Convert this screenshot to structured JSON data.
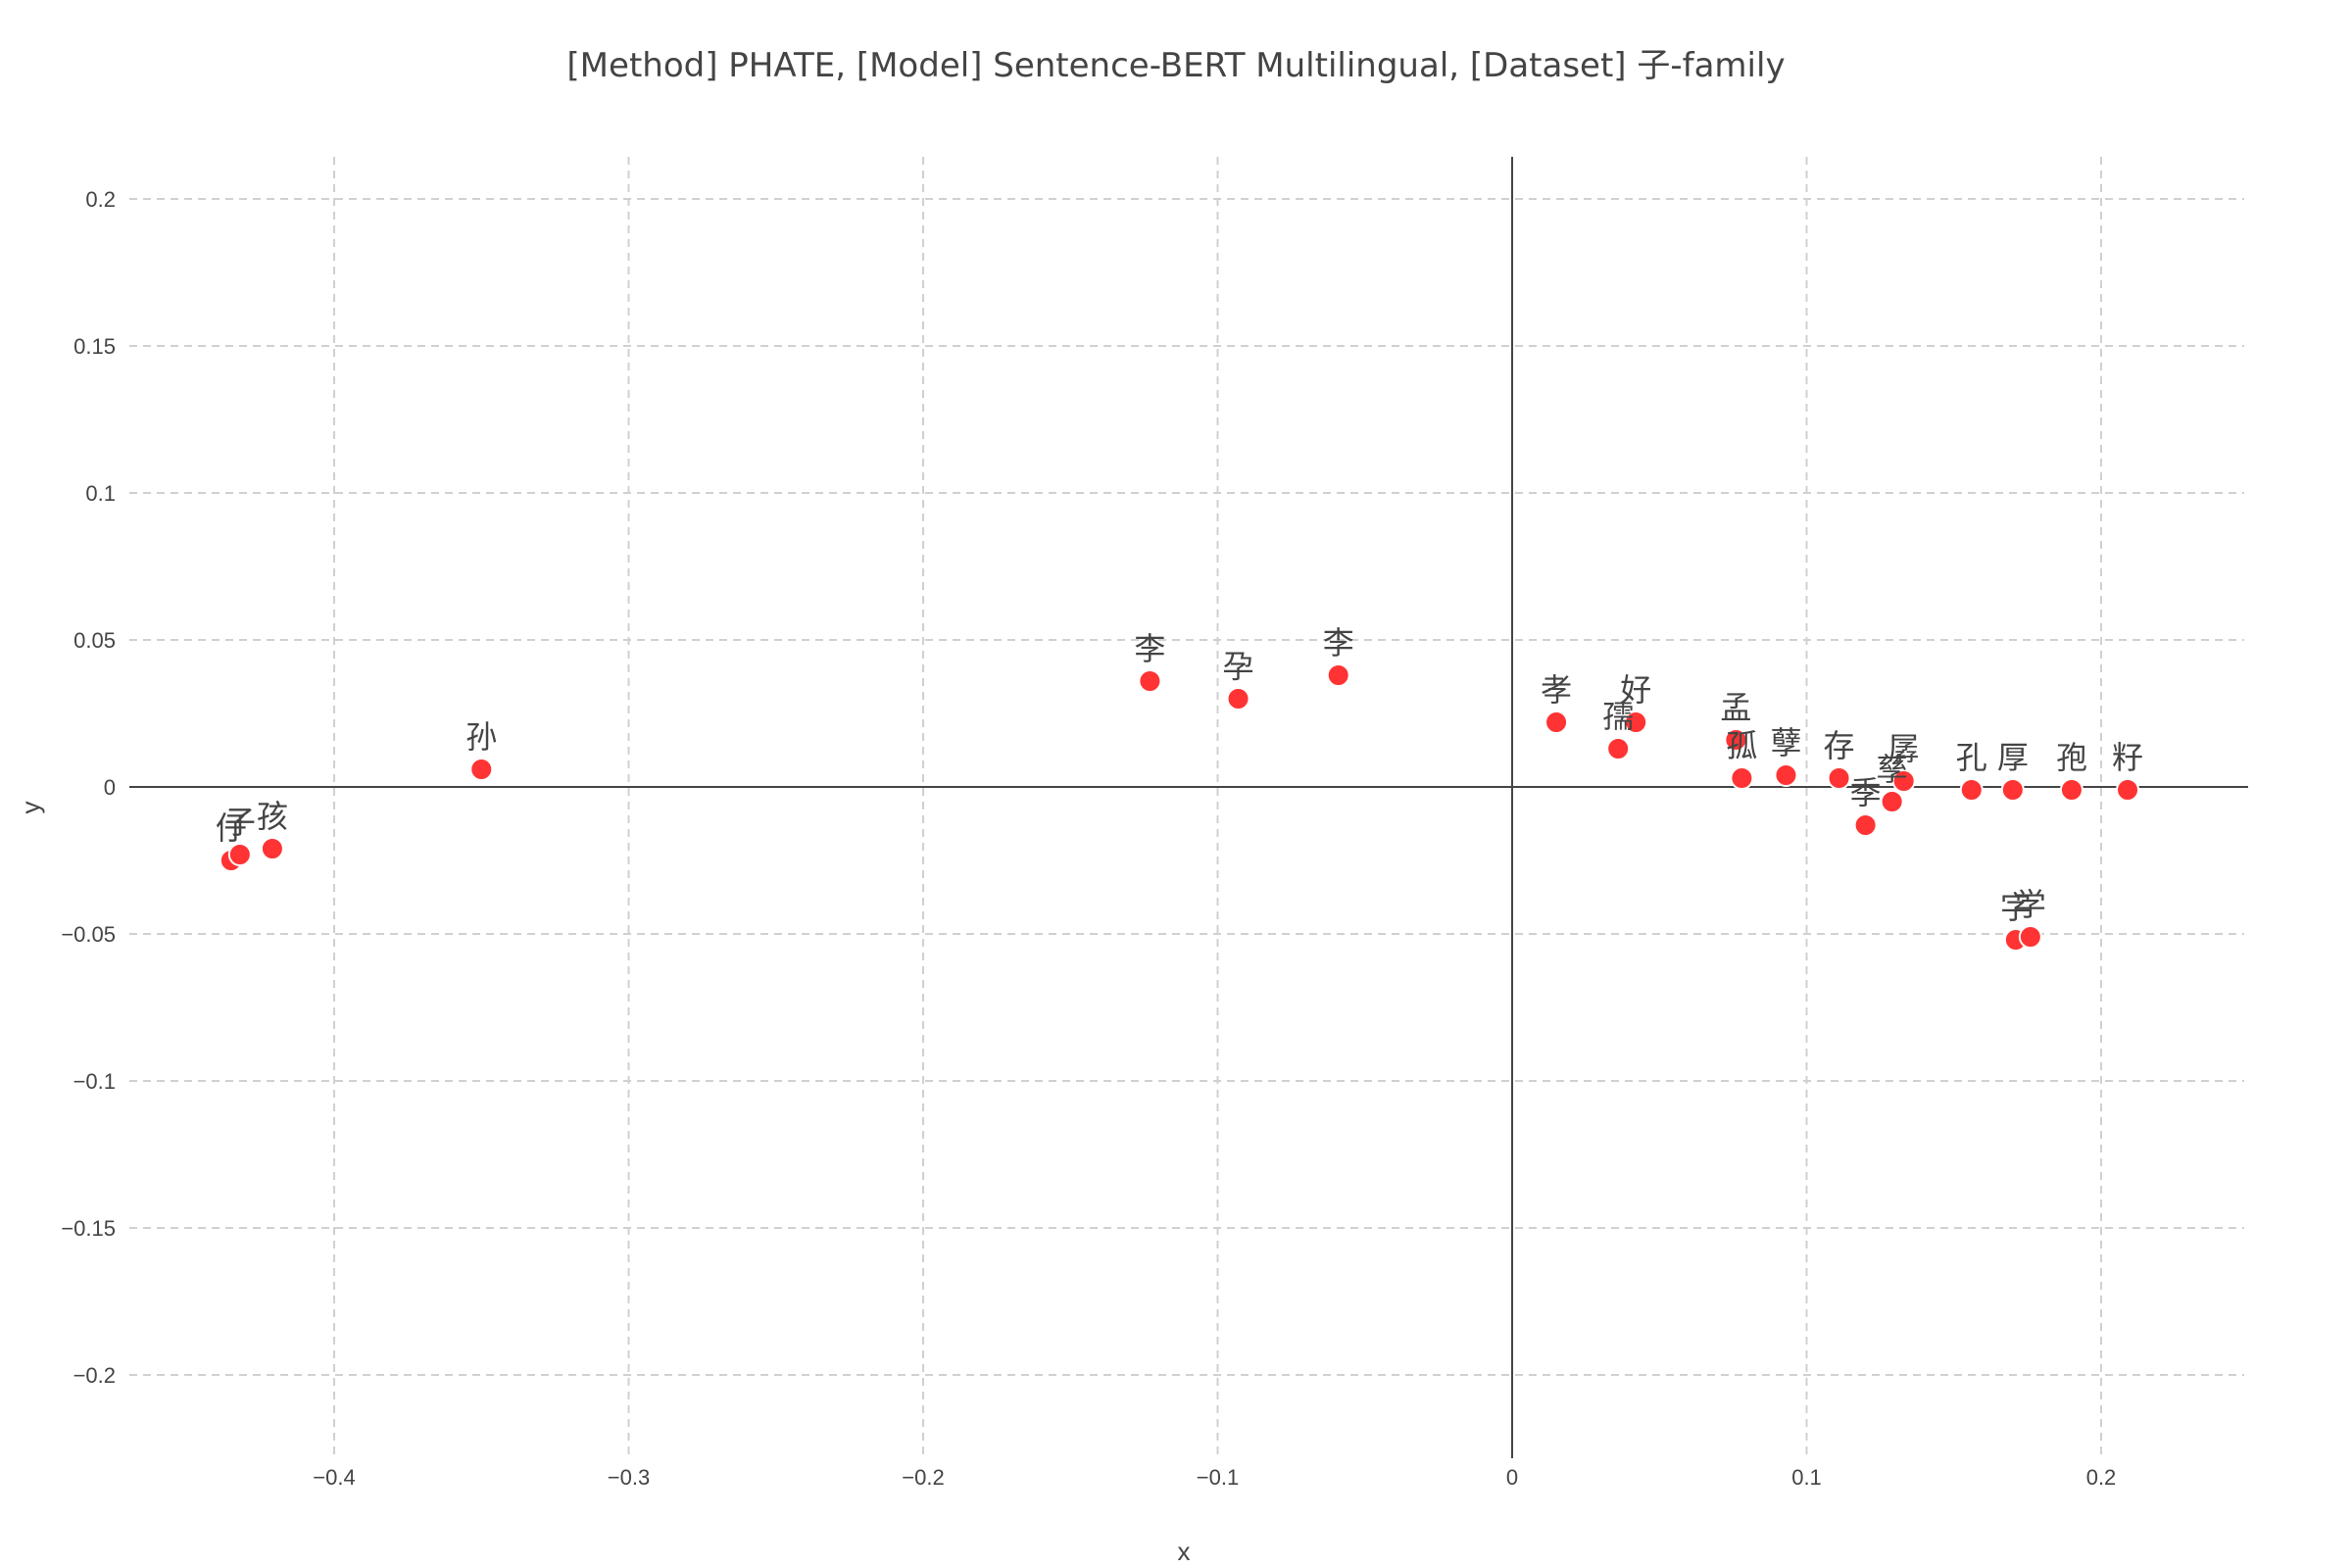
{
  "chart_data": {
    "type": "scatter",
    "title": "[Method] PHATE, [Model] Sentence-BERT Multilingual, [Dataset] 子-family",
    "xlabel": "x",
    "ylabel": "y",
    "xlim": [
      -0.4,
      0.25
    ],
    "ylim": [
      -0.225,
      0.215
    ],
    "x_ticks": [
      -0.4,
      -0.3,
      -0.2,
      -0.1,
      0,
      0.1,
      0.2
    ],
    "x_tick_labels": [
      "−0.4",
      "−0.3",
      "−0.2",
      "−0.1",
      "0",
      "0.1",
      "0.2"
    ],
    "y_ticks": [
      0.2,
      0.15,
      0.1,
      0.05,
      0,
      -0.05,
      -0.1,
      -0.15,
      -0.2
    ],
    "y_tick_labels": [
      "0.2",
      "0.15",
      "0.1",
      "0.05",
      "0",
      "−0.05",
      "−0.1",
      "−0.15",
      "−0.2"
    ],
    "grid": true,
    "marker_color": "#ff3333",
    "points": [
      {
        "label": "仔",
        "x": -0.435,
        "y": -0.025
      },
      {
        "label": "子",
        "x": -0.432,
        "y": -0.023
      },
      {
        "label": "孩",
        "x": -0.421,
        "y": -0.021
      },
      {
        "label": "孙",
        "x": -0.35,
        "y": 0.006
      },
      {
        "label": "李",
        "x": -0.123,
        "y": 0.036
      },
      {
        "label": "孕",
        "x": -0.093,
        "y": 0.03
      },
      {
        "label": "李",
        "x": -0.059,
        "y": 0.038
      },
      {
        "label": "孝",
        "x": 0.015,
        "y": 0.022
      },
      {
        "label": "好",
        "x": 0.042,
        "y": 0.022
      },
      {
        "label": "孺",
        "x": 0.036,
        "y": 0.013
      },
      {
        "label": "孟",
        "x": 0.076,
        "y": 0.016
      },
      {
        "label": "孤",
        "x": 0.078,
        "y": 0.003
      },
      {
        "label": "孽",
        "x": 0.093,
        "y": 0.004
      },
      {
        "label": "存",
        "x": 0.111,
        "y": 0.003
      },
      {
        "label": "季",
        "x": 0.12,
        "y": -0.013
      },
      {
        "label": "孳",
        "x": 0.129,
        "y": -0.005
      },
      {
        "label": "孱",
        "x": 0.133,
        "y": 0.002
      },
      {
        "label": "孔",
        "x": 0.156,
        "y": -0.001
      },
      {
        "label": "厚",
        "x": 0.17,
        "y": -0.001
      },
      {
        "label": "孢",
        "x": 0.19,
        "y": -0.001
      },
      {
        "label": "籽",
        "x": 0.209,
        "y": -0.001
      },
      {
        "label": "字",
        "x": 0.171,
        "y": -0.052
      },
      {
        "label": "学",
        "x": 0.176,
        "y": -0.051
      }
    ]
  }
}
